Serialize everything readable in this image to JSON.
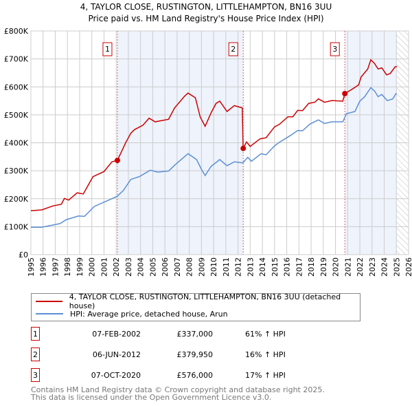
{
  "chart_data": {
    "type": "line",
    "title": "4, TAYLOR CLOSE, RUSTINGTON, LITTLEHAMPTON, BN16 3UU",
    "subtitle": "Price paid vs. HM Land Registry's House Price Index (HPI)",
    "xlim": [
      1995,
      2026
    ],
    "ylim": [
      0,
      800000
    ],
    "x_ticks": [
      "1995",
      "1996",
      "1997",
      "1998",
      "1999",
      "2000",
      "2001",
      "2002",
      "2003",
      "2004",
      "2005",
      "2006",
      "2007",
      "2008",
      "2009",
      "2010",
      "2011",
      "2012",
      "2013",
      "2014",
      "2015",
      "2016",
      "2017",
      "2018",
      "2019",
      "2020",
      "2021",
      "2022",
      "2023",
      "2024",
      "2025",
      "2026"
    ],
    "y_ticks": [
      {
        "v": 0,
        "label": "£0"
      },
      {
        "v": 100000,
        "label": "£100K"
      },
      {
        "v": 200000,
        "label": "£200K"
      },
      {
        "v": 300000,
        "label": "£300K"
      },
      {
        "v": 400000,
        "label": "£400K"
      },
      {
        "v": 500000,
        "label": "£500K"
      },
      {
        "v": 600000,
        "label": "£600K"
      },
      {
        "v": 700000,
        "label": "£700K"
      },
      {
        "v": 800000,
        "label": "£800K"
      }
    ],
    "grid": true,
    "data_end": 2025.0,
    "series": [
      {
        "name": "4, TAYLOR CLOSE, RUSTINGTON, LITTLEHAMPTON, BN16 3UU (detached house)",
        "color": "#cc0000",
        "points": [
          [
            1995.0,
            157
          ],
          [
            1995.9,
            160
          ],
          [
            1996.8,
            174
          ],
          [
            1997.5,
            180
          ],
          [
            1997.75,
            201
          ],
          [
            1998.1,
            195
          ],
          [
            1998.8,
            221
          ],
          [
            1999.3,
            217
          ],
          [
            2000.1,
            279
          ],
          [
            2001.0,
            297
          ],
          [
            2001.65,
            332
          ],
          [
            2002.1,
            337
          ],
          [
            2002.8,
            402
          ],
          [
            2003.2,
            434
          ],
          [
            2003.5,
            447
          ],
          [
            2004.2,
            463
          ],
          [
            2004.7,
            488
          ],
          [
            2005.2,
            475
          ],
          [
            2006.3,
            484
          ],
          [
            2006.8,
            525
          ],
          [
            2007.6,
            566
          ],
          [
            2007.9,
            578
          ],
          [
            2008.5,
            561
          ],
          [
            2008.9,
            492
          ],
          [
            2009.3,
            459
          ],
          [
            2009.8,
            508
          ],
          [
            2010.2,
            541
          ],
          [
            2010.5,
            549
          ],
          [
            2011.1,
            512
          ],
          [
            2011.7,
            533
          ],
          [
            2012.35,
            525
          ],
          [
            2012.42,
            380
          ],
          [
            2012.7,
            403
          ],
          [
            2013.0,
            387
          ],
          [
            2013.8,
            414
          ],
          [
            2014.3,
            418
          ],
          [
            2015.0,
            457
          ],
          [
            2015.4,
            466
          ],
          [
            2016.1,
            493
          ],
          [
            2016.5,
            493
          ],
          [
            2016.9,
            516
          ],
          [
            2017.3,
            515
          ],
          [
            2017.8,
            541
          ],
          [
            2018.3,
            545
          ],
          [
            2018.6,
            557
          ],
          [
            2019.1,
            545
          ],
          [
            2019.7,
            551
          ],
          [
            2020.6,
            549
          ],
          [
            2020.77,
            576
          ],
          [
            2021.45,
            594
          ],
          [
            2021.9,
            607
          ],
          [
            2022.1,
            635
          ],
          [
            2022.65,
            664
          ],
          [
            2022.9,
            697
          ],
          [
            2023.2,
            684
          ],
          [
            2023.5,
            664
          ],
          [
            2023.8,
            668
          ],
          [
            2024.2,
            643
          ],
          [
            2024.5,
            648
          ],
          [
            2024.9,
            672
          ],
          [
            2025.05,
            672
          ]
        ]
      },
      {
        "name": "HPI: Average price, detached house, Arun",
        "color": "#5b8fd4",
        "points": [
          [
            1995.0,
            98
          ],
          [
            1995.9,
            98
          ],
          [
            1997.4,
            111
          ],
          [
            1997.9,
            125
          ],
          [
            1998.9,
            138
          ],
          [
            1999.4,
            137
          ],
          [
            2000.2,
            172
          ],
          [
            2000.8,
            184
          ],
          [
            2001.5,
            197
          ],
          [
            2002.1,
            209
          ],
          [
            2002.6,
            230
          ],
          [
            2003.2,
            269
          ],
          [
            2003.9,
            279
          ],
          [
            2004.8,
            302
          ],
          [
            2005.4,
            295
          ],
          [
            2006.3,
            299
          ],
          [
            2006.9,
            324
          ],
          [
            2007.9,
            361
          ],
          [
            2008.6,
            340
          ],
          [
            2009.0,
            305
          ],
          [
            2009.3,
            283
          ],
          [
            2009.8,
            316
          ],
          [
            2010.5,
            340
          ],
          [
            2011.1,
            318
          ],
          [
            2011.7,
            332
          ],
          [
            2012.4,
            328
          ],
          [
            2012.8,
            348
          ],
          [
            2013.1,
            334
          ],
          [
            2013.9,
            361
          ],
          [
            2014.3,
            357
          ],
          [
            2015.0,
            389
          ],
          [
            2015.4,
            402
          ],
          [
            2016.3,
            426
          ],
          [
            2016.9,
            444
          ],
          [
            2017.3,
            443
          ],
          [
            2017.9,
            467
          ],
          [
            2018.6,
            482
          ],
          [
            2019.1,
            469
          ],
          [
            2019.7,
            475
          ],
          [
            2020.6,
            475
          ],
          [
            2020.9,
            504
          ],
          [
            2021.6,
            512
          ],
          [
            2022.0,
            549
          ],
          [
            2022.4,
            565
          ],
          [
            2022.9,
            597
          ],
          [
            2023.2,
            586
          ],
          [
            2023.5,
            565
          ],
          [
            2023.8,
            573
          ],
          [
            2024.25,
            551
          ],
          [
            2024.7,
            557
          ],
          [
            2025.0,
            578
          ]
        ]
      }
    ],
    "sales": [
      {
        "label": "1",
        "x": 2002.1,
        "value": 337000,
        "date": "07-FEB-2002",
        "price": "£337,000",
        "hpi": "61% ↑ HPI"
      },
      {
        "label": "2",
        "x": 2012.43,
        "value": 379950,
        "date": "06-JUN-2012",
        "price": "£379,950",
        "hpi": "16% ↑ HPI"
      },
      {
        "label": "3",
        "x": 2020.77,
        "value": 576000,
        "date": "07-OCT-2020",
        "price": "£576,000",
        "hpi": "17% ↑ HPI"
      }
    ]
  },
  "footer": {
    "line1": "Contains HM Land Registry data © Crown copyright and database right 2025.",
    "line2": "This data is licensed under the Open Government Licence v3.0."
  }
}
